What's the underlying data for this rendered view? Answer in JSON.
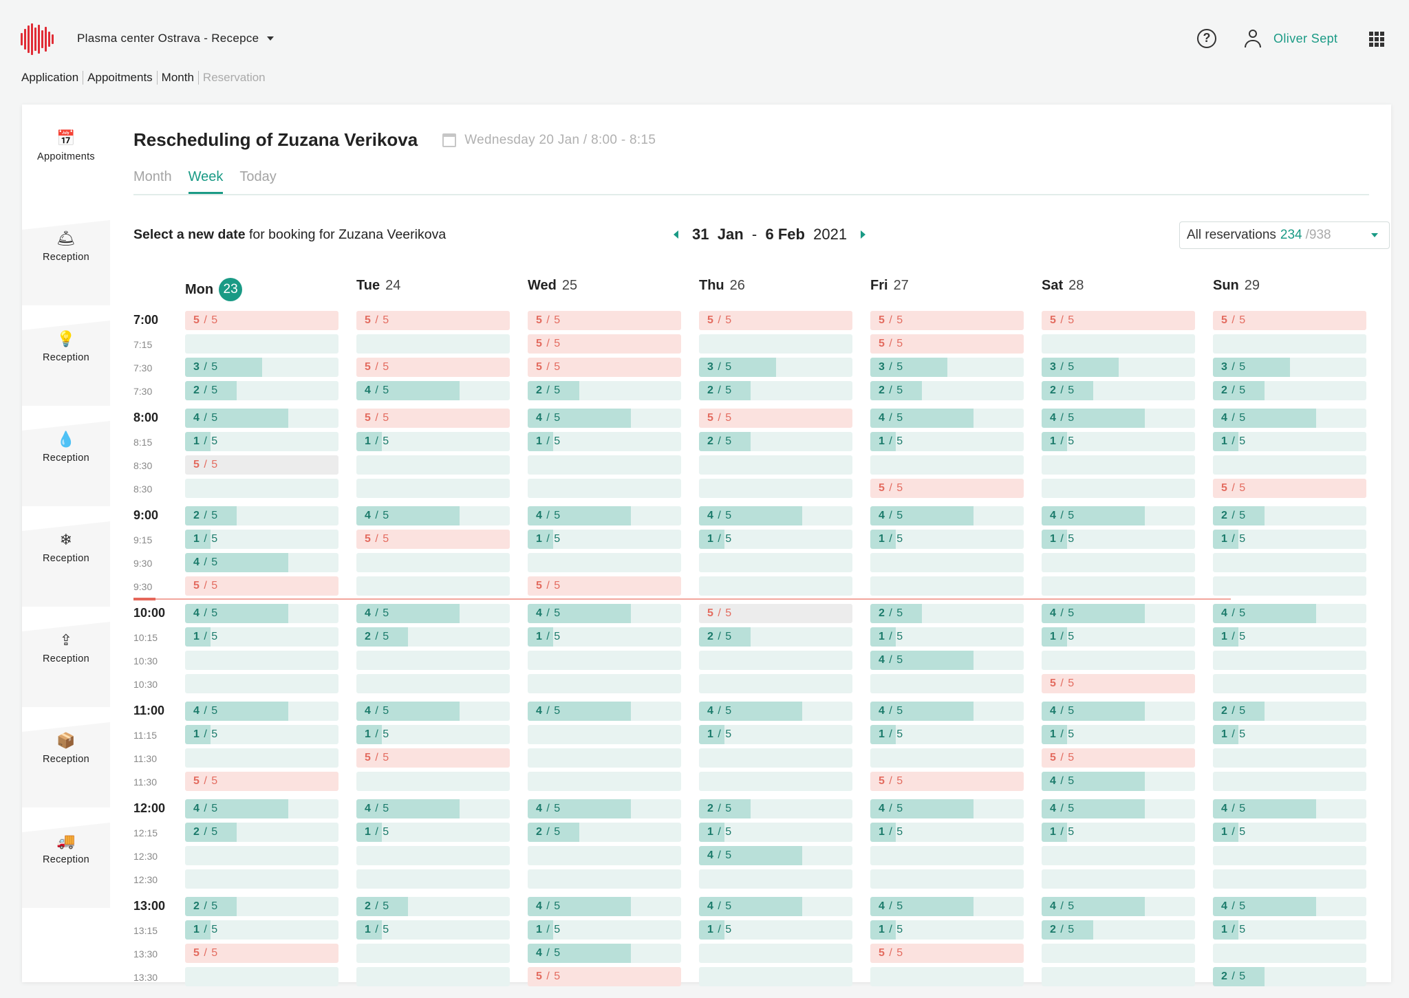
{
  "header": {
    "center_name": "Plasma center Ostrava - Recepce",
    "user_name": "Oliver Sept",
    "help_glyph": "?"
  },
  "breadcrumb": [
    "Application",
    "Appoitments",
    "Month",
    "Reservation"
  ],
  "sidebar": {
    "items": [
      {
        "icon": "calendar-icon",
        "glyph": "📅",
        "label": "Appoitments"
      },
      {
        "icon": "bell-icon",
        "glyph": "🛎",
        "label": "Reception"
      },
      {
        "icon": "lightbulb-icon",
        "glyph": "💡",
        "label": "Reception"
      },
      {
        "icon": "drop-icon",
        "glyph": "💧",
        "label": "Reception"
      },
      {
        "icon": "snowflake-icon",
        "glyph": "❄",
        "label": "Reception"
      },
      {
        "icon": "upload-box-icon",
        "glyph": "⇪",
        "label": "Reception"
      },
      {
        "icon": "package-icon",
        "glyph": "📦",
        "label": "Reception"
      },
      {
        "icon": "truck-icon",
        "glyph": "🚚",
        "label": "Reception"
      }
    ]
  },
  "title": "Rescheduling of Zuzana Verikova",
  "title_sub": "Wednesday 20 Jan / 8:00 - 8:15",
  "tabs": [
    "Month",
    "Week",
    "Today"
  ],
  "select_text_bold": "Select a new date",
  "select_text_rest": "for booking for Zuzana Veerikova",
  "range": {
    "start_day": "31",
    "start_month": "Jan",
    "dash": "-",
    "end_day": "6",
    "end_month": "Feb",
    "year": "2021"
  },
  "dropdown": {
    "label": "All reservations",
    "count": "234",
    "total": "/938"
  },
  "colors": {
    "accent": "#1a9a85",
    "full": "#e36b5f",
    "free_bg": "#e8f3f1",
    "fill": "#b9e0d9",
    "full_bg": "#fbe2df"
  },
  "days": [
    {
      "name": "Mon",
      "num": "23",
      "today": true
    },
    {
      "name": "Tue",
      "num": "24",
      "today": false
    },
    {
      "name": "Wed",
      "num": "25",
      "today": false
    },
    {
      "name": "Thu",
      "num": "26",
      "today": false
    },
    {
      "name": "Fri",
      "num": "27",
      "today": false
    },
    {
      "name": "Sat",
      "num": "28",
      "today": false
    },
    {
      "name": "Sun",
      "num": "29",
      "today": false
    }
  ],
  "slots": [
    {
      "time": "7:00",
      "major": true,
      "cells": [
        "5",
        "5",
        "5",
        "5",
        "5",
        "5",
        "5"
      ]
    },
    {
      "time": "7:15",
      "major": false,
      "cells": [
        "",
        "",
        "5",
        "",
        "5",
        "",
        ""
      ]
    },
    {
      "time": "7:30",
      "major": false,
      "cells": [
        "3",
        "5",
        "5",
        "3",
        "3",
        "3",
        "3"
      ]
    },
    {
      "time": "7:30",
      "major": false,
      "cells": [
        "2",
        "4",
        "2",
        "2",
        "2",
        "2",
        "2"
      ]
    },
    {
      "time": "8:00",
      "major": true,
      "cells": [
        "4",
        "5",
        "4",
        "5",
        "4",
        "4",
        "4"
      ]
    },
    {
      "time": "8:15",
      "major": false,
      "cells": [
        "1",
        "1",
        "1",
        "2",
        "1",
        "1",
        "1"
      ]
    },
    {
      "time": "8:30",
      "major": false,
      "cells": [
        "5g",
        "",
        "",
        "",
        "",
        "",
        ""
      ]
    },
    {
      "time": "8:30",
      "major": false,
      "cells": [
        "",
        "",
        "",
        "",
        "5",
        "",
        "5"
      ]
    },
    {
      "time": "9:00",
      "major": true,
      "cells": [
        "2",
        "4",
        "4",
        "4",
        "4",
        "4",
        "2"
      ]
    },
    {
      "time": "9:15",
      "major": false,
      "cells": [
        "1",
        "5",
        "1",
        "1",
        "1",
        "1",
        "1"
      ]
    },
    {
      "time": "9:30",
      "major": false,
      "cells": [
        "4",
        "",
        "",
        "",
        "",
        "",
        ""
      ]
    },
    {
      "time": "9:30",
      "major": false,
      "cells": [
        "5",
        "",
        "5",
        "",
        "",
        "",
        ""
      ]
    },
    {
      "time": "10:00",
      "major": true,
      "cells": [
        "4",
        "4",
        "4",
        "5g",
        "2",
        "4",
        "4"
      ]
    },
    {
      "time": "10:15",
      "major": false,
      "cells": [
        "1",
        "2",
        "1",
        "2",
        "1",
        "1",
        "1"
      ]
    },
    {
      "time": "10:30",
      "major": false,
      "cells": [
        "",
        "",
        "",
        "",
        "4",
        "",
        ""
      ]
    },
    {
      "time": "10:30",
      "major": false,
      "cells": [
        "",
        "",
        "",
        "",
        "",
        "5",
        ""
      ]
    },
    {
      "time": "11:00",
      "major": true,
      "cells": [
        "4",
        "4",
        "4",
        "4",
        "4",
        "4",
        "2"
      ]
    },
    {
      "time": "11:15",
      "major": false,
      "cells": [
        "1",
        "1",
        "",
        "1",
        "1",
        "1",
        "1"
      ]
    },
    {
      "time": "11:30",
      "major": false,
      "cells": [
        "",
        "5",
        "",
        "",
        "",
        "5",
        ""
      ]
    },
    {
      "time": "11:30",
      "major": false,
      "cells": [
        "5",
        "",
        "",
        "",
        "5",
        "4",
        ""
      ]
    },
    {
      "time": "12:00",
      "major": true,
      "cells": [
        "4",
        "4",
        "4",
        "2",
        "4",
        "4",
        "4"
      ]
    },
    {
      "time": "12:15",
      "major": false,
      "cells": [
        "2",
        "1",
        "2",
        "1",
        "1",
        "1",
        "1"
      ]
    },
    {
      "time": "12:30",
      "major": false,
      "cells": [
        "",
        "",
        "",
        "4",
        "",
        "",
        ""
      ]
    },
    {
      "time": "12:30",
      "major": false,
      "cells": [
        "",
        "",
        "",
        "",
        "",
        "",
        ""
      ]
    },
    {
      "time": "13:00",
      "major": true,
      "cells": [
        "2",
        "2",
        "4",
        "4",
        "4",
        "4",
        "4"
      ]
    },
    {
      "time": "13:15",
      "major": false,
      "cells": [
        "1",
        "1",
        "1",
        "1",
        "1",
        "2",
        "1"
      ]
    },
    {
      "time": "13:30",
      "major": false,
      "cells": [
        "5",
        "",
        "4",
        "",
        "5",
        "",
        ""
      ]
    },
    {
      "time": "13:30",
      "major": false,
      "cells": [
        "",
        "",
        "5",
        "",
        "",
        "",
        "2"
      ]
    }
  ],
  "capacity": "5",
  "slot_separator": " / "
}
